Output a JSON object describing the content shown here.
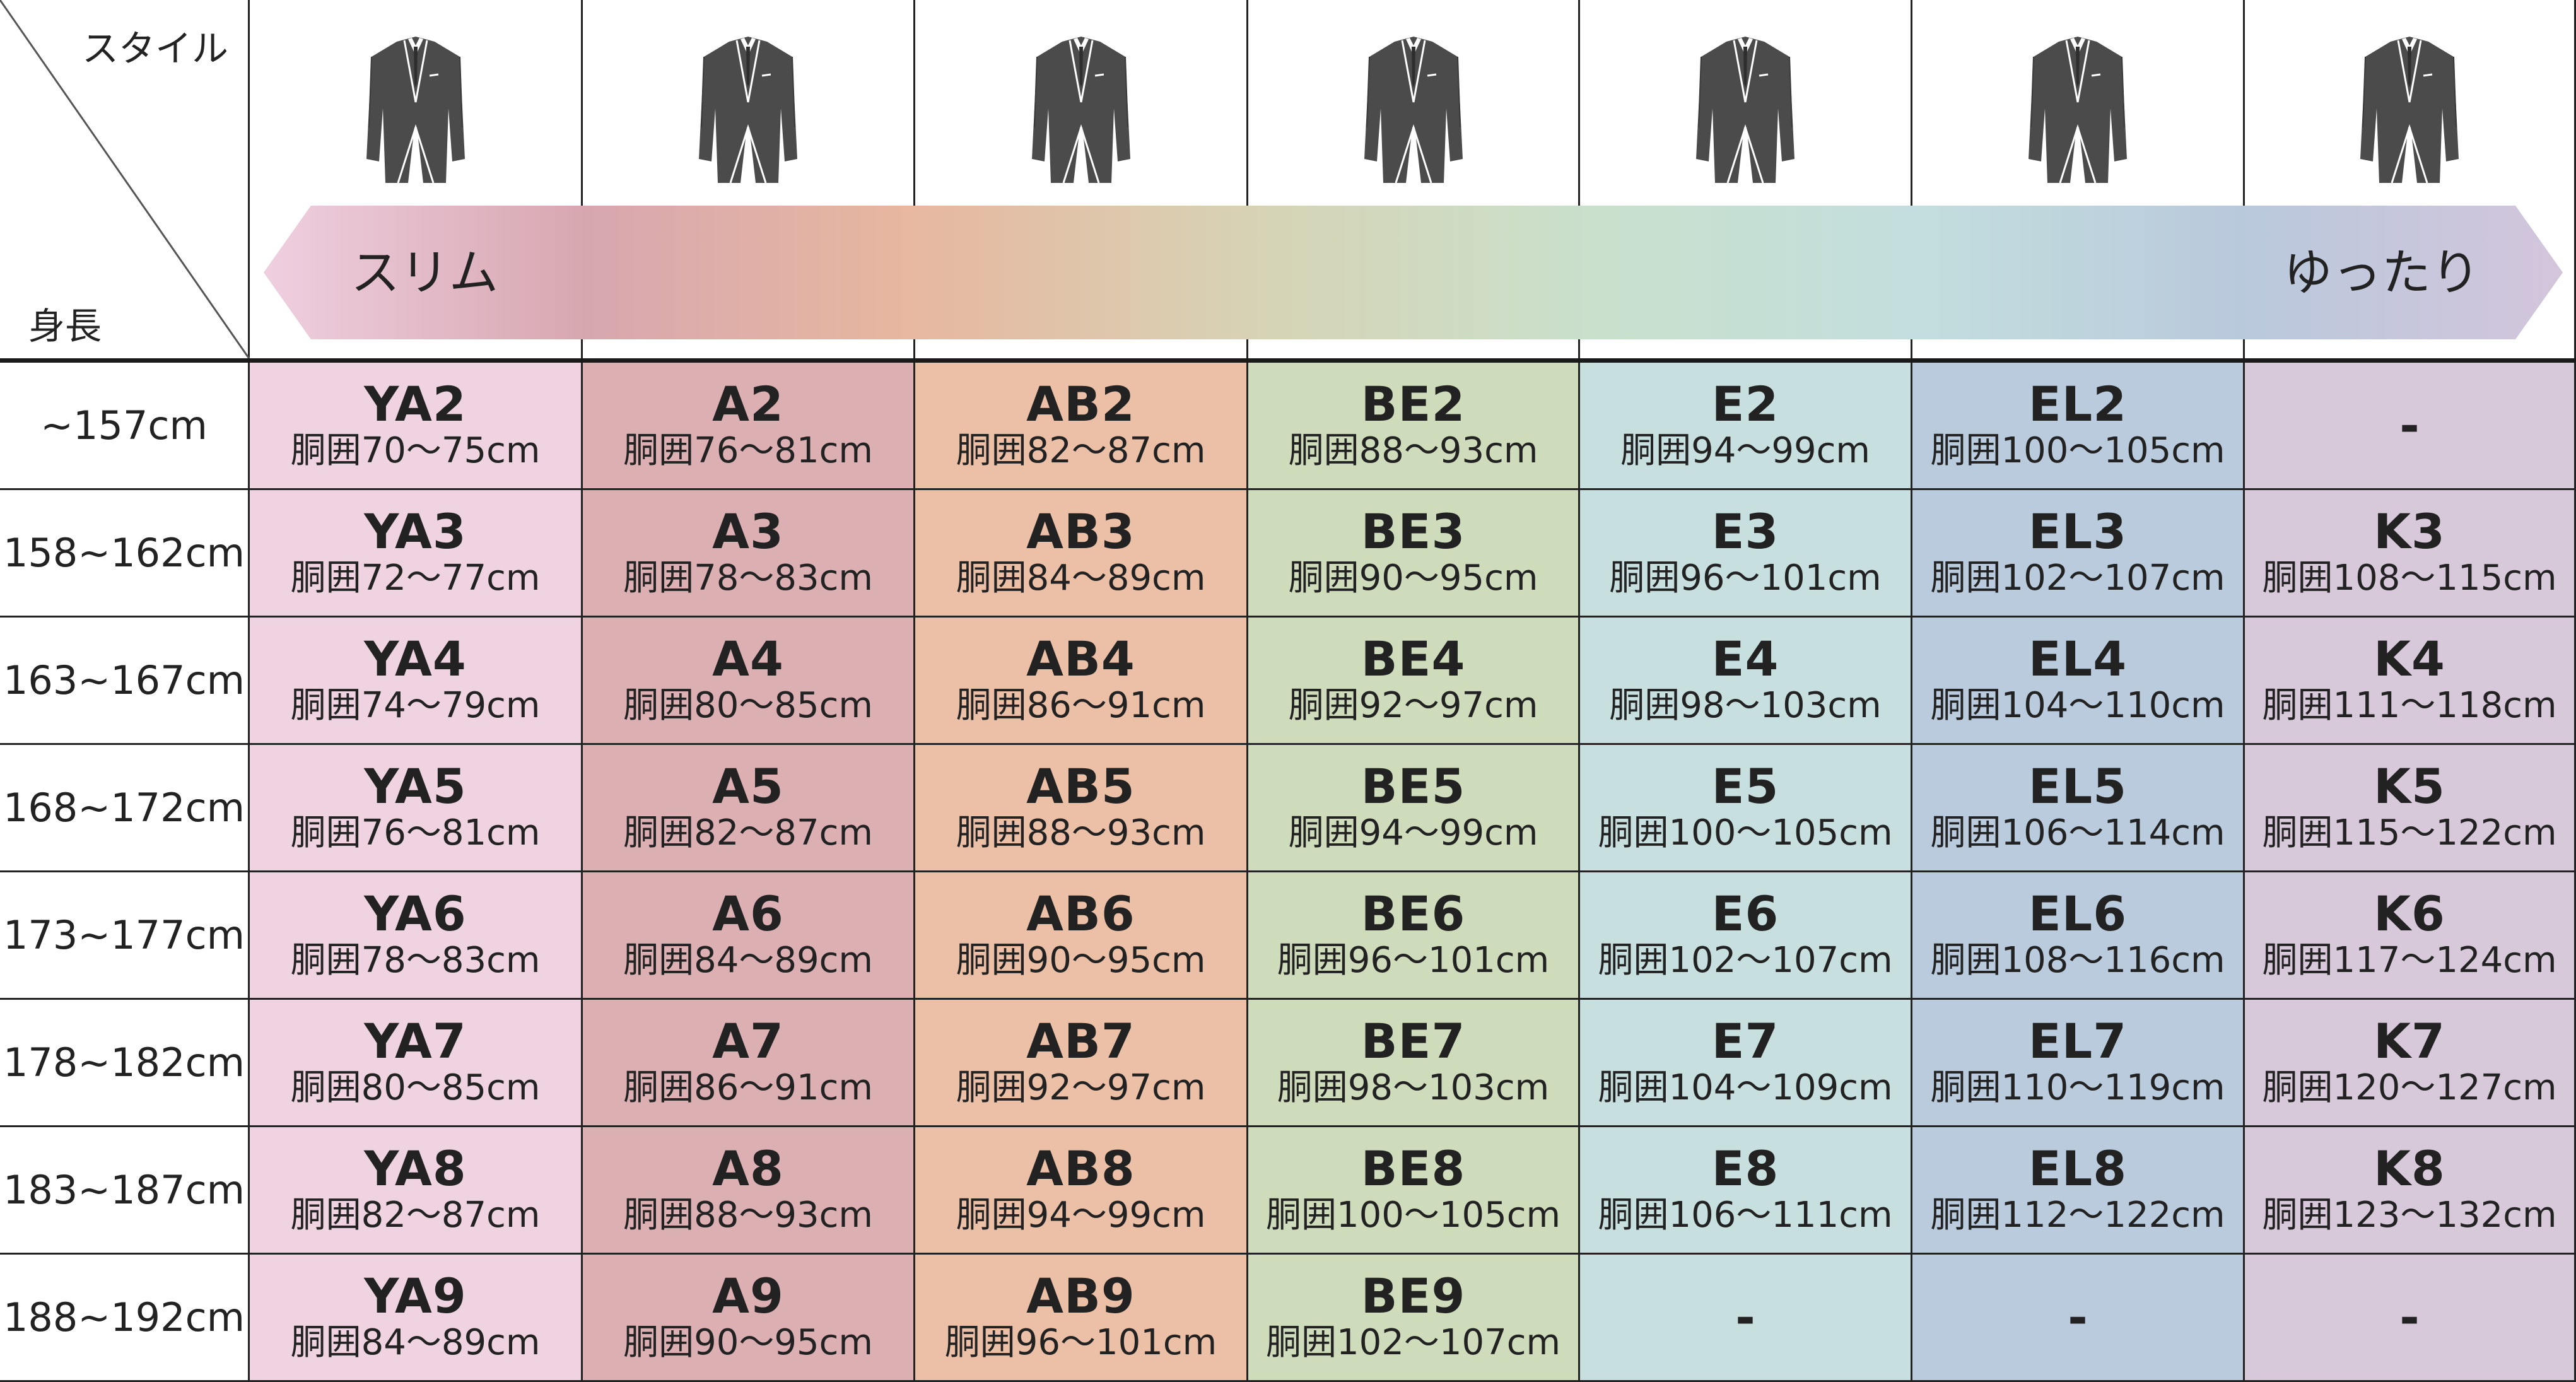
{
  "header": {
    "style_label": "スタイル",
    "height_label": "身長",
    "slim_label": "スリム",
    "relaxed_label": "ゆったり"
  },
  "columns": [
    {
      "name": "YA",
      "color": "#efd3e0"
    },
    {
      "name": "A",
      "color": "#dcb0b3"
    },
    {
      "name": "AB",
      "color": "#ecc0a7"
    },
    {
      "name": "BE",
      "color": "#cfdcbc"
    },
    {
      "name": "E",
      "color": "#c8dfe0"
    },
    {
      "name": "EL",
      "color": "#b9cbdc"
    },
    {
      "name": "K",
      "color": "#d8c9da"
    }
  ],
  "rows": [
    {
      "height": "~157cm",
      "cells": [
        {
          "code": "YA2",
          "waist": "胴囲70～75cm"
        },
        {
          "code": "A2",
          "waist": "胴囲76～81cm"
        },
        {
          "code": "AB2",
          "waist": "胴囲82～87cm"
        },
        {
          "code": "BE2",
          "waist": "胴囲88～93cm"
        },
        {
          "code": "E2",
          "waist": "胴囲94～99cm"
        },
        {
          "code": "EL2",
          "waist": "胴囲100～105cm"
        },
        {
          "code": "-",
          "waist": ""
        }
      ]
    },
    {
      "height": "158~162cm",
      "cells": [
        {
          "code": "YA3",
          "waist": "胴囲72～77cm"
        },
        {
          "code": "A3",
          "waist": "胴囲78～83cm"
        },
        {
          "code": "AB3",
          "waist": "胴囲84～89cm"
        },
        {
          "code": "BE3",
          "waist": "胴囲90～95cm"
        },
        {
          "code": "E3",
          "waist": "胴囲96～101cm"
        },
        {
          "code": "EL3",
          "waist": "胴囲102～107cm"
        },
        {
          "code": "K3",
          "waist": "胴囲108～115cm"
        }
      ]
    },
    {
      "height": "163~167cm",
      "cells": [
        {
          "code": "YA4",
          "waist": "胴囲74～79cm"
        },
        {
          "code": "A4",
          "waist": "胴囲80～85cm"
        },
        {
          "code": "AB4",
          "waist": "胴囲86～91cm"
        },
        {
          "code": "BE4",
          "waist": "胴囲92～97cm"
        },
        {
          "code": "E4",
          "waist": "胴囲98～103cm"
        },
        {
          "code": "EL4",
          "waist": "胴囲104～110cm"
        },
        {
          "code": "K4",
          "waist": "胴囲111～118cm"
        }
      ]
    },
    {
      "height": "168~172cm",
      "cells": [
        {
          "code": "YA5",
          "waist": "胴囲76～81cm"
        },
        {
          "code": "A5",
          "waist": "胴囲82～87cm"
        },
        {
          "code": "AB5",
          "waist": "胴囲88～93cm"
        },
        {
          "code": "BE5",
          "waist": "胴囲94～99cm"
        },
        {
          "code": "E5",
          "waist": "胴囲100～105cm"
        },
        {
          "code": "EL5",
          "waist": "胴囲106～114cm"
        },
        {
          "code": "K5",
          "waist": "胴囲115～122cm"
        }
      ]
    },
    {
      "height": "173~177cm",
      "cells": [
        {
          "code": "YA6",
          "waist": "胴囲78～83cm"
        },
        {
          "code": "A6",
          "waist": "胴囲84～89cm"
        },
        {
          "code": "AB6",
          "waist": "胴囲90～95cm"
        },
        {
          "code": "BE6",
          "waist": "胴囲96～101cm"
        },
        {
          "code": "E6",
          "waist": "胴囲102～107cm"
        },
        {
          "code": "EL6",
          "waist": "胴囲108～116cm"
        },
        {
          "code": "K6",
          "waist": "胴囲117～124cm"
        }
      ]
    },
    {
      "height": "178~182cm",
      "cells": [
        {
          "code": "YA7",
          "waist": "胴囲80～85cm"
        },
        {
          "code": "A7",
          "waist": "胴囲86～91cm"
        },
        {
          "code": "AB7",
          "waist": "胴囲92～97cm"
        },
        {
          "code": "BE7",
          "waist": "胴囲98～103cm"
        },
        {
          "code": "E7",
          "waist": "胴囲104～109cm"
        },
        {
          "code": "EL7",
          "waist": "胴囲110～119cm"
        },
        {
          "code": "K7",
          "waist": "胴囲120～127cm"
        }
      ]
    },
    {
      "height": "183~187cm",
      "cells": [
        {
          "code": "YA8",
          "waist": "胴囲82～87cm"
        },
        {
          "code": "A8",
          "waist": "胴囲88～93cm"
        },
        {
          "code": "AB8",
          "waist": "胴囲94～99cm"
        },
        {
          "code": "BE8",
          "waist": "胴囲100～105cm"
        },
        {
          "code": "E8",
          "waist": "胴囲106～111cm"
        },
        {
          "code": "EL8",
          "waist": "胴囲112～122cm"
        },
        {
          "code": "K8",
          "waist": "胴囲123～132cm"
        }
      ]
    },
    {
      "height": "188~192cm",
      "cells": [
        {
          "code": "YA9",
          "waist": "胴囲84～89cm"
        },
        {
          "code": "A9",
          "waist": "胴囲90～95cm"
        },
        {
          "code": "AB9",
          "waist": "胴囲96～101cm"
        },
        {
          "code": "BE9",
          "waist": "胴囲102～107cm"
        },
        {
          "code": "-",
          "waist": ""
        },
        {
          "code": "-",
          "waist": ""
        },
        {
          "code": "-",
          "waist": ""
        }
      ]
    }
  ]
}
